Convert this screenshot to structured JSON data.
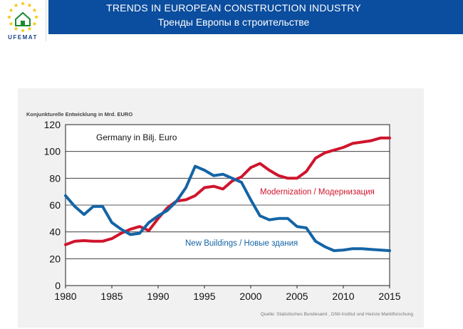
{
  "header": {
    "title": "TRENDS IN EUROPEAN CONSTRUCTION INDUSTRY",
    "subtitle": "Тренды Европы в строительстве",
    "logo_text": "UFEMAT"
  },
  "colors": {
    "header_bg": "#0b4d9e",
    "modernization": "#d0142c",
    "new_buildings": "#1464a5",
    "logo_star": "#f2c200"
  },
  "icons": {
    "logo": "eu-stars-house-icon"
  },
  "chart_data": {
    "type": "line",
    "title": "Konjunkturelle Entwicklung in Mrd. EURO",
    "inset_label": "Germany in Bilj. Euro",
    "source": "Quelle: Statistisches Bundesamt , DIW-Institut und Heinze Marktforschung",
    "xlabel": "",
    "ylabel": "",
    "xlim": [
      1980,
      2015
    ],
    "ylim": [
      0,
      120
    ],
    "x_ticks": [
      "1980",
      "1985",
      "1990",
      "1995",
      "2000",
      "2005",
      "2010",
      "2015"
    ],
    "y_ticks": [
      "0",
      "20",
      "40",
      "60",
      "80",
      "100",
      "120"
    ],
    "grid": true,
    "x": [
      1980,
      1981,
      1982,
      1983,
      1984,
      1985,
      1986,
      1987,
      1988,
      1989,
      1990,
      1991,
      1992,
      1993,
      1994,
      1995,
      1996,
      1997,
      1998,
      1999,
      2000,
      2001,
      2002,
      2003,
      2004,
      2005,
      2006,
      2007,
      2008,
      2009,
      2010,
      2011,
      2012,
      2013,
      2014,
      2015
    ],
    "series": [
      {
        "name": "Modernization / Модернизация",
        "color": "#d0142c",
        "values": [
          30.5,
          33,
          33.5,
          33,
          33,
          35,
          39,
          42,
          44,
          41,
          50,
          58,
          63,
          64,
          67,
          73,
          74,
          72,
          78,
          81,
          88,
          91,
          86,
          82,
          80,
          80,
          85,
          95,
          99,
          101,
          103,
          106,
          107,
          108,
          110,
          110
        ]
      },
      {
        "name": "New Buildings / Новые здания",
        "color": "#1464a5",
        "values": [
          67,
          59,
          53,
          59,
          59,
          47,
          42,
          38,
          39,
          47,
          52,
          56,
          63,
          73,
          89,
          86,
          82,
          83,
          80,
          77,
          64,
          52,
          49,
          50,
          50,
          44,
          43,
          33,
          29,
          26,
          26.5,
          27.5,
          27.5,
          27,
          26.5,
          26
        ]
      }
    ]
  }
}
